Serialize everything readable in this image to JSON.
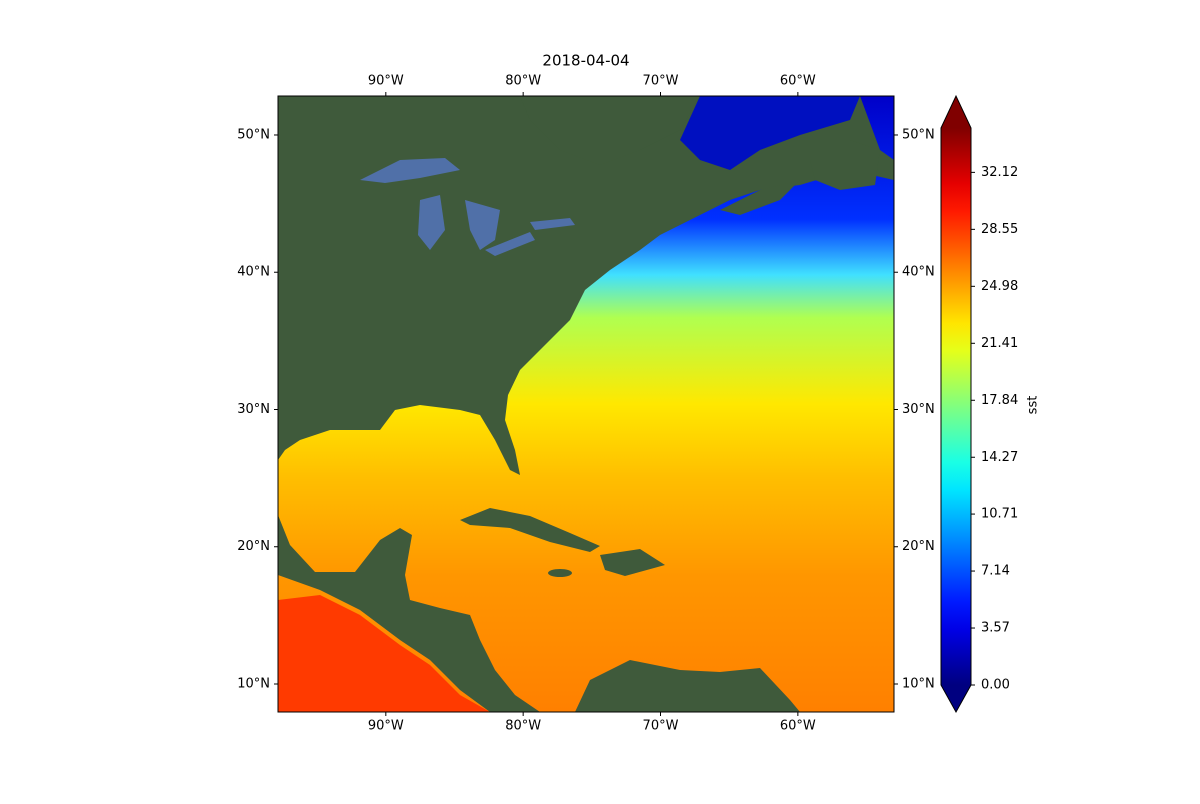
{
  "chart_data": {
    "type": "map",
    "title": "2018-04-04",
    "xlim": [
      -97.85,
      -53.0
    ],
    "ylim": [
      7.96,
      52.84
    ],
    "xticks": [
      {
        "value": -90,
        "label": "90°W"
      },
      {
        "value": -80,
        "label": "80°W"
      },
      {
        "value": -70,
        "label": "70°W"
      },
      {
        "value": -60,
        "label": "60°W"
      }
    ],
    "yticks": [
      {
        "value": 10,
        "label": "10°N"
      },
      {
        "value": 20,
        "label": "20°N"
      },
      {
        "value": 30,
        "label": "30°N"
      },
      {
        "value": 40,
        "label": "40°N"
      },
      {
        "value": 50,
        "label": "50°N"
      }
    ],
    "colorbar": {
      "label": "sst",
      "cmap": "jet",
      "extend": "both",
      "clim": [
        0,
        34.9
      ],
      "ticks": [
        {
          "value": 0,
          "label": "0.00"
        },
        3.57,
        7.14,
        10.71,
        14.27,
        17.84,
        21.41,
        24.98,
        28.55,
        32.12
      ]
    }
  }
}
